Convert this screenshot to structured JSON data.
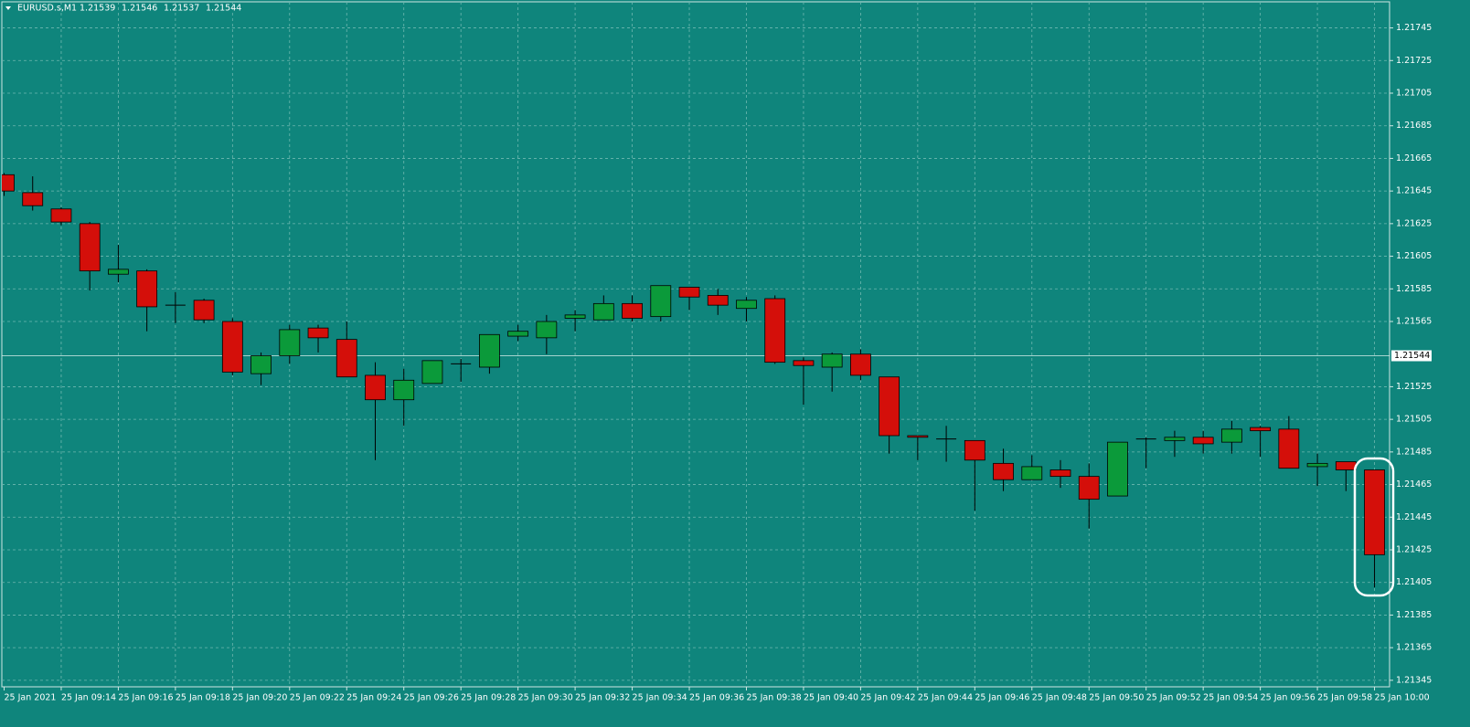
{
  "chart_data": {
    "type": "candlestick",
    "title": "EURUSD.s,M1",
    "header_values": [
      1.21539,
      1.21546,
      1.21537,
      1.21544
    ],
    "categories": [
      "25 Jan 2021",
      null,
      "25 Jan 09:14",
      null,
      "25 Jan 09:16",
      null,
      "25 Jan 09:18",
      null,
      "25 Jan 09:20",
      null,
      "25 Jan 09:22",
      null,
      "25 Jan 09:24",
      null,
      "25 Jan 09:26",
      null,
      "25 Jan 09:28",
      null,
      "25 Jan 09:30",
      null,
      "25 Jan 09:32",
      null,
      "25 Jan 09:34",
      null,
      "25 Jan 09:36",
      null,
      "25 Jan 09:38",
      null,
      "25 Jan 09:40",
      null,
      "25 Jan 09:42",
      null,
      "25 Jan 09:44",
      null,
      "25 Jan 09:46",
      null,
      "25 Jan 09:48",
      null,
      "25 Jan 09:50",
      null,
      "25 Jan 09:52",
      null,
      "25 Jan 09:54",
      null,
      "25 Jan 09:56",
      null,
      "25 Jan 09:58",
      null,
      "25 Jan 10:00"
    ],
    "open": [
      1.21655,
      1.21644,
      1.21634,
      1.21625,
      1.21594,
      1.21596,
      1.21575,
      1.21578,
      1.21565,
      1.21533,
      1.21544,
      1.21561,
      1.21554,
      1.21532,
      1.21517,
      1.21527,
      1.21539,
      1.21537,
      1.21556,
      1.21555,
      1.21567,
      1.21566,
      1.21576,
      1.21568,
      1.21586,
      1.21581,
      1.21573,
      1.21579,
      1.21541,
      1.21537,
      1.21545,
      1.21531,
      1.21495,
      1.21493,
      1.21492,
      1.21478,
      1.21468,
      1.21474,
      1.2147,
      1.21458,
      1.21493,
      1.21492,
      1.21494,
      1.21491,
      1.215,
      1.21499,
      1.21476,
      1.21479,
      1.21474
    ],
    "high": [
      1.21656,
      1.21654,
      1.21635,
      1.21626,
      1.21612,
      1.21597,
      1.21583,
      1.21579,
      1.21567,
      1.21546,
      1.21563,
      1.21563,
      1.21565,
      1.2154,
      1.21536,
      1.21541,
      1.21542,
      1.21557,
      1.21563,
      1.21569,
      1.21572,
      1.21581,
      1.21581,
      1.21587,
      1.21586,
      1.21585,
      1.2158,
      1.21581,
      1.21543,
      1.21546,
      1.21548,
      1.21531,
      1.21495,
      1.21501,
      1.21492,
      1.21487,
      1.21483,
      1.2148,
      1.21478,
      1.21491,
      1.21494,
      1.21498,
      1.21498,
      1.21504,
      1.21501,
      1.21507,
      1.21484,
      1.21479,
      1.21474
    ],
    "low": [
      1.21642,
      1.21633,
      1.21624,
      1.21584,
      1.21589,
      1.21559,
      1.21564,
      1.21564,
      1.21532,
      1.21526,
      1.21539,
      1.21546,
      1.21531,
      1.2148,
      1.21501,
      1.21527,
      1.21528,
      1.21533,
      1.21553,
      1.21545,
      1.21559,
      1.21566,
      1.21565,
      1.21565,
      1.21572,
      1.21569,
      1.21565,
      1.21539,
      1.21514,
      1.21522,
      1.21529,
      1.21484,
      1.2148,
      1.21479,
      1.21449,
      1.21461,
      1.21468,
      1.21463,
      1.21438,
      1.21458,
      1.21475,
      1.21482,
      1.21484,
      1.21484,
      1.21482,
      1.21475,
      1.21464,
      1.21461,
      1.21402
    ],
    "close": [
      1.21645,
      1.21636,
      1.21626,
      1.21596,
      1.21597,
      1.21574,
      1.21575,
      1.21566,
      1.21534,
      1.21544,
      1.2156,
      1.21555,
      1.21531,
      1.21517,
      1.21529,
      1.21541,
      1.21539,
      1.21557,
      1.21559,
      1.21565,
      1.21569,
      1.21576,
      1.21567,
      1.21587,
      1.2158,
      1.21575,
      1.21578,
      1.2154,
      1.21538,
      1.21545,
      1.21532,
      1.21495,
      1.21494,
      1.21493,
      1.2148,
      1.21468,
      1.21476,
      1.2147,
      1.21456,
      1.21491,
      1.21493,
      1.21494,
      1.2149,
      1.21499,
      1.21498,
      1.21475,
      1.21478,
      1.21474,
      1.21422
    ],
    "up_color": "#0b9a3a",
    "down_color": "#d40f0a",
    "background": "#0f857c",
    "ylim": [
      1.21341,
      1.21761
    ],
    "yticks": [
      1.21345,
      1.21365,
      1.21385,
      1.21405,
      1.21425,
      1.21445,
      1.21465,
      1.21485,
      1.21505,
      1.21525,
      1.21565,
      1.21585,
      1.21605,
      1.21625,
      1.21645,
      1.21665,
      1.21685,
      1.21705,
      1.21725,
      1.21745
    ],
    "grid": true,
    "last_price": 1.21544
  }
}
